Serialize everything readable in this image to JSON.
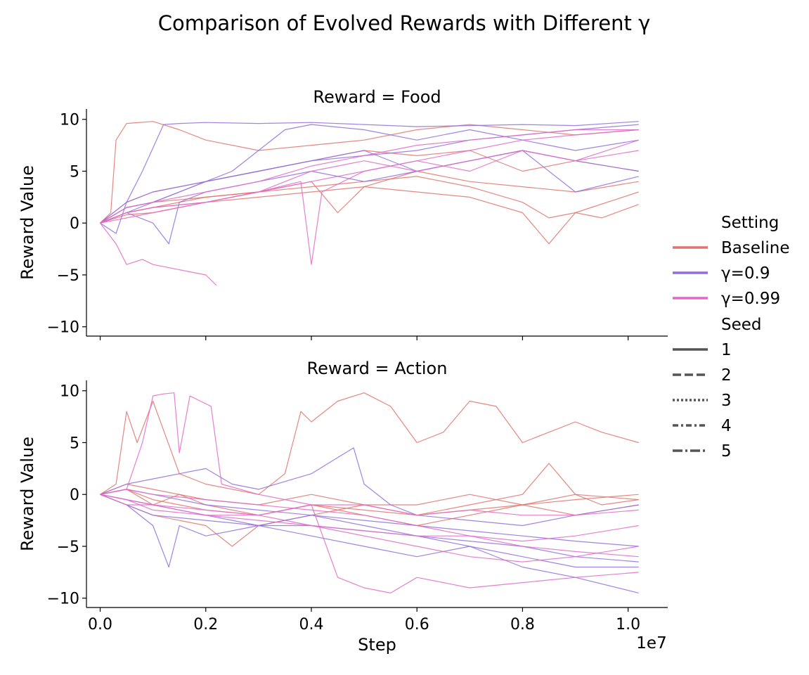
{
  "figure": {
    "title": "Comparison of Evolved Rewards with Different γ",
    "x_offset_label": "1e7"
  },
  "legend": {
    "setting_title": "Setting",
    "settings": [
      {
        "label": "Baseline",
        "color": "#e0736a"
      },
      {
        "label": "γ=0.9",
        "color": "#8f6ddd"
      },
      {
        "label": "γ=0.99",
        "color": "#e06ac6"
      }
    ],
    "seed_title": "Seed",
    "seeds": [
      {
        "label": "1",
        "dash": "solid"
      },
      {
        "label": "2",
        "dash": "dashed"
      },
      {
        "label": "3",
        "dash": "dotted"
      },
      {
        "label": "4",
        "dash": "dashdot-short"
      },
      {
        "label": "5",
        "dash": "dashdot"
      }
    ],
    "placement": "right"
  },
  "chart_data": [
    {
      "type": "line",
      "title": "Reward = Food",
      "xlabel": "",
      "ylabel": "Reward Value",
      "xlim": [
        -0.026,
        1.075
      ],
      "ylim": [
        -10.9,
        11.0
      ],
      "xticks": [
        0.0,
        0.2,
        0.4,
        0.6,
        0.8,
        1.0
      ],
      "xtick_labels": [
        "",
        "",
        "",
        "",
        "",
        ""
      ],
      "yticks": [
        10,
        5,
        0,
        -5,
        -10
      ],
      "ytick_labels": [
        "10",
        "5",
        "0",
        "−5",
        "−10"
      ],
      "grid": false,
      "series": [
        {
          "setting": "Baseline",
          "color": "#e0736a",
          "x": [
            0,
            0.02,
            0.03,
            0.05,
            0.1,
            0.15,
            0.2,
            0.3,
            0.4,
            0.5,
            0.6,
            0.7,
            0.8,
            0.9,
            1.02
          ],
          "y": [
            0,
            1,
            8,
            9.6,
            9.8,
            9,
            8,
            7,
            7.5,
            8,
            9,
            9.5,
            9,
            8.5,
            9
          ]
        },
        {
          "setting": "Baseline",
          "color": "#e0736a",
          "x": [
            0,
            0.05,
            0.1,
            0.15,
            0.2,
            0.3,
            0.4,
            0.5,
            0.6,
            0.7,
            0.8,
            0.85,
            0.9,
            0.95,
            1.02
          ],
          "y": [
            0,
            1,
            1.5,
            2,
            2.5,
            3,
            3.5,
            4,
            4.5,
            3.5,
            2,
            0.5,
            1,
            0.5,
            1.8
          ]
        },
        {
          "setting": "Baseline",
          "color": "#e0736a",
          "x": [
            0,
            0.05,
            0.1,
            0.15,
            0.2,
            0.3,
            0.4,
            0.5,
            0.6,
            0.7,
            0.8,
            0.85,
            0.9,
            1.02
          ],
          "y": [
            0,
            0.8,
            1,
            1.5,
            2,
            2.5,
            3,
            3.5,
            3,
            2.5,
            1,
            -2,
            1,
            3
          ]
        },
        {
          "setting": "Baseline",
          "color": "#e0736a",
          "x": [
            0,
            0.05,
            0.1,
            0.2,
            0.3,
            0.4,
            0.45,
            0.5,
            0.6,
            0.7,
            0.8,
            0.9,
            1.02
          ],
          "y": [
            0,
            1.5,
            2,
            2.5,
            3,
            4,
            1,
            3.5,
            5,
            4,
            3.5,
            3,
            4
          ]
        },
        {
          "setting": "Baseline",
          "color": "#e0736a",
          "x": [
            0,
            0.05,
            0.1,
            0.2,
            0.3,
            0.4,
            0.5,
            0.6,
            0.7,
            0.8,
            0.9,
            1.02
          ],
          "y": [
            0,
            2,
            3,
            4,
            5,
            6,
            7,
            6.5,
            7,
            5,
            6,
            5
          ]
        },
        {
          "setting": "γ=0.9",
          "color": "#8f6ddd",
          "x": [
            0,
            0.03,
            0.05,
            0.08,
            0.12,
            0.15,
            0.2,
            0.3,
            0.4,
            0.5,
            0.6,
            0.7,
            0.8,
            0.9,
            1.02
          ],
          "y": [
            0,
            -1,
            2,
            5,
            9.5,
            9.6,
            9.7,
            9.6,
            9.7,
            9.5,
            9.3,
            9.4,
            9.5,
            9.4,
            9.8
          ]
        },
        {
          "setting": "γ=0.9",
          "color": "#8f6ddd",
          "x": [
            0,
            0.05,
            0.1,
            0.15,
            0.2,
            0.25,
            0.3,
            0.35,
            0.4,
            0.5,
            0.6,
            0.7,
            0.8,
            0.9,
            1.02
          ],
          "y": [
            0,
            1,
            2,
            3,
            4,
            5,
            7,
            9,
            9.5,
            9,
            8,
            9,
            8,
            7,
            8
          ]
        },
        {
          "setting": "γ=0.9",
          "color": "#8f6ddd",
          "x": [
            0,
            0.05,
            0.1,
            0.15,
            0.2,
            0.3,
            0.4,
            0.5,
            0.6,
            0.7,
            0.8,
            0.9,
            1.02
          ],
          "y": [
            0,
            1.5,
            2,
            3,
            4,
            5,
            6,
            7,
            5,
            6,
            7,
            3,
            4.5
          ]
        },
        {
          "setting": "γ=0.9",
          "color": "#8f6ddd",
          "x": [
            0,
            0.05,
            0.1,
            0.13,
            0.15,
            0.2,
            0.3,
            0.4,
            0.5,
            0.6,
            0.7,
            0.8,
            0.9,
            1.02
          ],
          "y": [
            0,
            1,
            0,
            -2,
            2,
            3,
            4,
            5,
            4,
            5,
            6,
            7,
            6,
            5
          ]
        },
        {
          "setting": "γ=0.9",
          "color": "#8f6ddd",
          "x": [
            0,
            0.05,
            0.1,
            0.2,
            0.3,
            0.4,
            0.5,
            0.6,
            0.7,
            0.8,
            0.9,
            1.02
          ],
          "y": [
            0,
            2,
            3,
            4,
            5,
            6,
            6.5,
            7,
            8,
            8.5,
            9,
            9.5
          ]
        },
        {
          "setting": "γ=0.99",
          "color": "#e06ac6",
          "x": [
            0,
            0.03,
            0.05,
            0.08,
            0.1,
            0.15,
            0.2,
            0.22
          ],
          "y": [
            0,
            -2,
            -4,
            -3.5,
            -4,
            -4.5,
            -5,
            -6
          ]
        },
        {
          "setting": "γ=0.99",
          "color": "#e06ac6",
          "x": [
            0,
            0.05,
            0.1,
            0.2,
            0.3,
            0.4,
            0.5,
            0.6,
            0.7,
            0.8,
            0.9,
            1.02
          ],
          "y": [
            0,
            1,
            1.5,
            2,
            3,
            4,
            5,
            6,
            7,
            8,
            8.5,
            9
          ]
        },
        {
          "setting": "γ=0.99",
          "color": "#e06ac6",
          "x": [
            0,
            0.05,
            0.1,
            0.2,
            0.3,
            0.38,
            0.4,
            0.42,
            0.5,
            0.6,
            0.7,
            0.8,
            0.9,
            1.02
          ],
          "y": [
            0,
            1,
            1.5,
            2,
            3,
            4,
            -4,
            3,
            5,
            6,
            5,
            7,
            6,
            7
          ]
        },
        {
          "setting": "γ=0.99",
          "color": "#e06ac6",
          "x": [
            0,
            0.05,
            0.1,
            0.2,
            0.3,
            0.4,
            0.5,
            0.6,
            0.7,
            0.8,
            0.9,
            1.02
          ],
          "y": [
            0,
            0.5,
            1,
            2,
            3,
            5,
            6,
            5,
            6,
            7,
            6,
            8
          ]
        },
        {
          "setting": "γ=0.99",
          "color": "#e06ac6",
          "x": [
            0,
            0.05,
            0.1,
            0.2,
            0.3,
            0.4,
            0.5,
            0.6,
            0.7,
            0.8,
            0.9,
            1.02
          ],
          "y": [
            0,
            1.5,
            2,
            3,
            4,
            5.5,
            6.5,
            7.5,
            8,
            8.5,
            9,
            9
          ]
        }
      ]
    },
    {
      "type": "line",
      "title": "Reward = Action",
      "xlabel": "Step",
      "ylabel": "Reward Value",
      "xlim": [
        -0.026,
        1.075
      ],
      "ylim": [
        -10.9,
        11.0
      ],
      "xticks": [
        0.0,
        0.2,
        0.4,
        0.6,
        0.8,
        1.0
      ],
      "xtick_labels": [
        "0.0",
        "0.2",
        "0.4",
        "0.6",
        "0.8",
        "1.0"
      ],
      "yticks": [
        10,
        5,
        0,
        -5,
        -10
      ],
      "ytick_labels": [
        "10",
        "5",
        "0",
        "−5",
        "−10"
      ],
      "grid": false,
      "series": [
        {
          "setting": "Baseline",
          "color": "#e0736a",
          "x": [
            0,
            0.03,
            0.05,
            0.07,
            0.1,
            0.15,
            0.2,
            0.3,
            0.35,
            0.38,
            0.4,
            0.45,
            0.5,
            0.55,
            0.6,
            0.65,
            0.7,
            0.75,
            0.8,
            0.85,
            0.9,
            0.95,
            1.02
          ],
          "y": [
            0,
            1,
            8,
            5,
            9,
            2,
            1,
            0,
            2,
            8,
            7,
            9,
            9.8,
            8.5,
            5,
            6,
            9,
            8.5,
            5,
            6,
            7,
            6,
            5
          ]
        },
        {
          "setting": "Baseline",
          "color": "#e0736a",
          "x": [
            0,
            0.05,
            0.1,
            0.15,
            0.2,
            0.3,
            0.4,
            0.5,
            0.6,
            0.7,
            0.8,
            0.85,
            0.9,
            0.95,
            1.02
          ],
          "y": [
            0,
            0.5,
            -1,
            0,
            -1,
            -2,
            -1,
            -1.5,
            -2,
            -1,
            0,
            3,
            0,
            -1,
            -0.5
          ]
        },
        {
          "setting": "Baseline",
          "color": "#e0736a",
          "x": [
            0,
            0.05,
            0.1,
            0.2,
            0.25,
            0.3,
            0.4,
            0.5,
            0.6,
            0.7,
            0.8,
            0.9,
            1.02
          ],
          "y": [
            0,
            -1,
            -2,
            -3,
            -5,
            -3,
            -2,
            -1,
            -1,
            0,
            -1,
            0,
            -0.5
          ]
        },
        {
          "setting": "Baseline",
          "color": "#e0736a",
          "x": [
            0,
            0.05,
            0.1,
            0.2,
            0.3,
            0.4,
            0.5,
            0.6,
            0.7,
            0.8,
            0.9,
            1.02
          ],
          "y": [
            0,
            1,
            0.5,
            -0.5,
            -1,
            0,
            -1,
            -2,
            -1.5,
            -1,
            -0.5,
            0
          ]
        },
        {
          "setting": "Baseline",
          "color": "#e0736a",
          "x": [
            0,
            0.05,
            0.1,
            0.2,
            0.3,
            0.4,
            0.5,
            0.6,
            0.7,
            0.8,
            0.9,
            1.02
          ],
          "y": [
            0,
            0.5,
            -0.5,
            -1.5,
            -2,
            -1,
            -2,
            -3,
            -2,
            -1,
            -2,
            -1
          ]
        },
        {
          "setting": "γ=0.9",
          "color": "#8f6ddd",
          "x": [
            0,
            0.05,
            0.1,
            0.13,
            0.15,
            0.2,
            0.3,
            0.4,
            0.5,
            0.6,
            0.7,
            0.8,
            0.9,
            1.02
          ],
          "y": [
            0,
            -1,
            -3,
            -7,
            -3,
            -4,
            -3,
            -4,
            -5,
            -6,
            -5,
            -7,
            -8,
            -9.5
          ]
        },
        {
          "setting": "γ=0.9",
          "color": "#8f6ddd",
          "x": [
            0,
            0.05,
            0.1,
            0.15,
            0.2,
            0.25,
            0.3,
            0.4,
            0.48,
            0.5,
            0.55,
            0.6,
            0.7,
            0.8,
            0.9,
            1.02
          ],
          "y": [
            0,
            1,
            1.5,
            2,
            2.5,
            1,
            0.5,
            2,
            4.5,
            1,
            -1,
            -2,
            -2.5,
            -3,
            -2,
            -1
          ]
        },
        {
          "setting": "γ=0.9",
          "color": "#8f6ddd",
          "x": [
            0,
            0.05,
            0.1,
            0.2,
            0.3,
            0.4,
            0.5,
            0.6,
            0.7,
            0.8,
            0.9,
            1.02
          ],
          "y": [
            0,
            -0.5,
            -1,
            -2,
            -3,
            -3,
            -3.5,
            -4,
            -5,
            -6,
            -7,
            -7
          ]
        },
        {
          "setting": "γ=0.9",
          "color": "#8f6ddd",
          "x": [
            0,
            0.05,
            0.1,
            0.2,
            0.3,
            0.4,
            0.5,
            0.6,
            0.7,
            0.8,
            0.9,
            1.02
          ],
          "y": [
            0,
            -1,
            -2,
            -2.5,
            -3,
            -2,
            -3,
            -4,
            -4.5,
            -5,
            -6,
            -6.5
          ]
        },
        {
          "setting": "γ=0.9",
          "color": "#8f6ddd",
          "x": [
            0,
            0.05,
            0.1,
            0.2,
            0.3,
            0.4,
            0.5,
            0.6,
            0.7,
            0.8,
            0.9,
            1.02
          ],
          "y": [
            0,
            0.5,
            0,
            -1,
            -1.5,
            -2,
            -2.5,
            -3,
            -3.5,
            -4,
            -4.5,
            -5
          ]
        },
        {
          "setting": "γ=0.99",
          "color": "#e06ac6",
          "x": [
            0,
            0.05,
            0.08,
            0.1,
            0.12,
            0.14,
            0.15,
            0.17,
            0.19,
            0.21,
            0.23,
            0.3,
            0.4,
            0.5,
            0.6,
            0.7,
            0.8,
            0.9,
            1.02
          ],
          "y": [
            0,
            0.5,
            5,
            9.5,
            9.7,
            9.8,
            4,
            9.5,
            9,
            8.5,
            1,
            0,
            -1,
            -1,
            -2,
            -1.5,
            -2,
            -2,
            -1.5
          ]
        },
        {
          "setting": "γ=0.99",
          "color": "#e06ac6",
          "x": [
            0,
            0.05,
            0.1,
            0.2,
            0.3,
            0.4,
            0.45,
            0.5,
            0.55,
            0.6,
            0.7,
            0.8,
            0.9,
            1.02
          ],
          "y": [
            0,
            -0.5,
            -1,
            -1.5,
            -2,
            -1,
            -8,
            -9,
            -9.5,
            -8,
            -9,
            -8.5,
            -8,
            -7.5
          ]
        },
        {
          "setting": "γ=0.99",
          "color": "#e06ac6",
          "x": [
            0,
            0.05,
            0.1,
            0.2,
            0.3,
            0.4,
            0.5,
            0.6,
            0.7,
            0.8,
            0.9,
            1.02
          ],
          "y": [
            0,
            -1,
            -1,
            -2,
            -2,
            -3,
            -4,
            -5,
            -6,
            -6.5,
            -6,
            -5
          ]
        },
        {
          "setting": "γ=0.99",
          "color": "#e06ac6",
          "x": [
            0,
            0.05,
            0.1,
            0.2,
            0.3,
            0.4,
            0.5,
            0.6,
            0.7,
            0.8,
            0.9,
            1.02
          ],
          "y": [
            0,
            0.5,
            0,
            -0.5,
            -1,
            -1.5,
            -2,
            -3,
            -4,
            -5,
            -5.5,
            -6
          ]
        },
        {
          "setting": "γ=0.99",
          "color": "#e06ac6",
          "x": [
            0,
            0.05,
            0.1,
            0.2,
            0.3,
            0.4,
            0.5,
            0.6,
            0.7,
            0.8,
            0.9,
            1.02
          ],
          "y": [
            0,
            -0.5,
            -1.5,
            -2,
            -2.5,
            -3,
            -3.5,
            -4,
            -4,
            -4.5,
            -4,
            -3
          ]
        }
      ]
    }
  ]
}
